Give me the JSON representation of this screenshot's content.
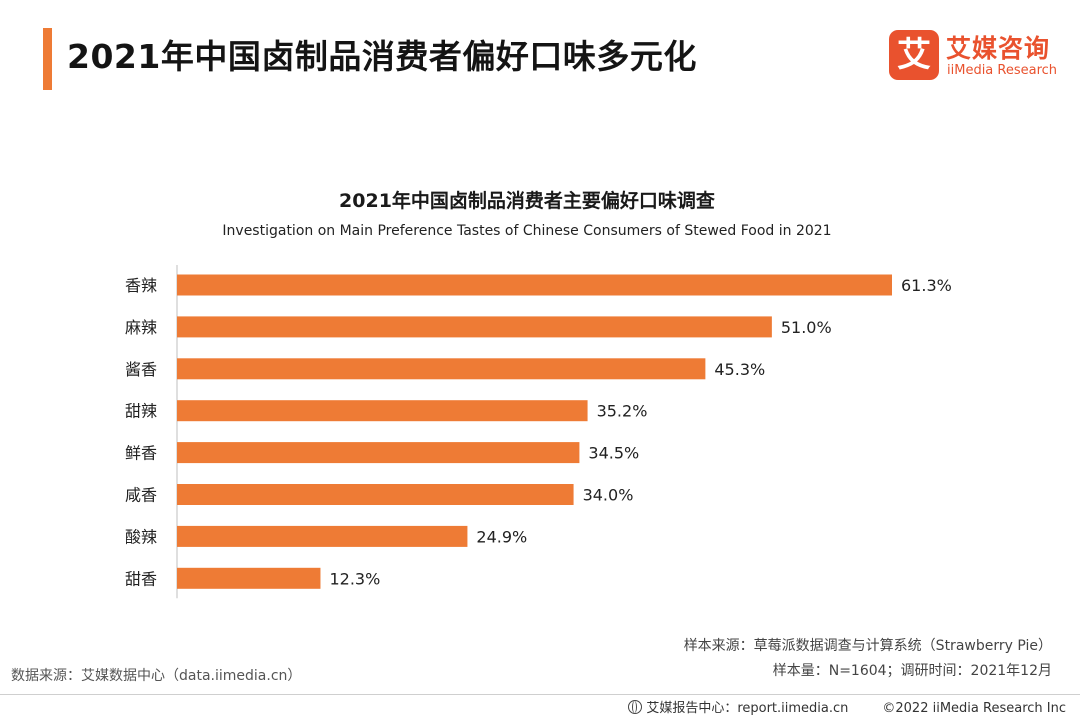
{
  "header": {
    "title": "2021年中国卤制品消费者偏好口味多元化",
    "logo_mark": "艾",
    "logo_cn": "艾媒咨询",
    "logo_en": "iiMedia Research"
  },
  "chart_data": {
    "type": "bar",
    "orientation": "horizontal",
    "title": "2021年中国卤制品消费者主要偏好口味调查",
    "subtitle": "Investigation on Main Preference Tastes of Chinese Consumers of Stewed Food in 2021",
    "categories": [
      "香辣",
      "麻辣",
      "酱香",
      "甜辣",
      "鲜香",
      "咸香",
      "酸辣",
      "甜香"
    ],
    "values": [
      61.3,
      51.0,
      45.3,
      35.2,
      34.5,
      34.0,
      24.9,
      12.3
    ],
    "labels": [
      "61.3%",
      "51.0%",
      "45.3%",
      "35.2%",
      "34.5%",
      "34.0%",
      "24.9%",
      "12.3%"
    ],
    "unit": "%",
    "xlim": [
      0,
      61.3
    ],
    "bar_color": "#ee7b35",
    "grid": false,
    "legend": "none"
  },
  "footer": {
    "source": "数据来源：艾媒数据中心（data.iimedia.cn）",
    "sample_source": "样本来源：草莓派数据调查与计算系统（Strawberry Pie）",
    "sample_size": "样本量：N=1604；调研时间：2021年12月",
    "report_center": "艾媒报告中心：report.iimedia.cn",
    "copyright": "©2022  iiMedia Research  Inc"
  }
}
